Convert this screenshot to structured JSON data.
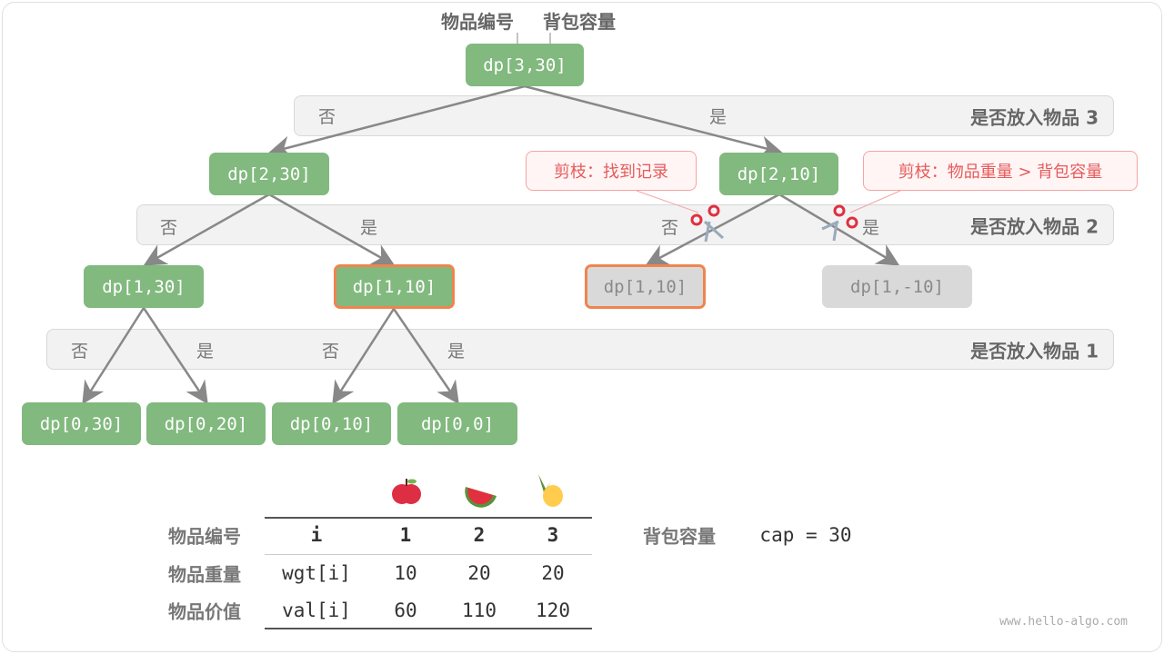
{
  "header": {
    "item_label": "物品编号",
    "capacity_label": "背包容量"
  },
  "bands": [
    {
      "title": "是否放入物品 3",
      "no": "否",
      "yes": "是"
    },
    {
      "title": "是否放入物品 2",
      "no": "否",
      "yes": "是",
      "no2": "否",
      "yes2": "是"
    },
    {
      "title": "是否放入物品 1",
      "no": "否",
      "yes": "是",
      "no2": "否",
      "yes2": "是"
    }
  ],
  "nodes": {
    "root": "dp[3,30]",
    "l2a": "dp[2,30]",
    "l2b": "dp[2,10]",
    "l1a": "dp[1,30]",
    "l1b": "dp[1,10]",
    "l1c": "dp[1,10]",
    "l1d": "dp[1,-10]",
    "l0a": "dp[0,30]",
    "l0b": "dp[0,20]",
    "l0c": "dp[0,10]",
    "l0d": "dp[0,0]"
  },
  "callouts": {
    "memo": "剪枝：找到记录",
    "overweight": "剪枝：物品重量 > 背包容量"
  },
  "colors": {
    "node": "#81b97e",
    "pruned": "#d9d9d9",
    "highlight": "#f0844f",
    "callout": "#e55b5b"
  },
  "table": {
    "icons": [
      "apple-icon",
      "watermelon-icon",
      "pineapple-icon"
    ],
    "rows": [
      {
        "label": "物品编号",
        "key": "i",
        "values": [
          "1",
          "2",
          "3"
        ]
      },
      {
        "label": "物品重量",
        "key": "wgt[i]",
        "values": [
          "10",
          "20",
          "20"
        ]
      },
      {
        "label": "物品价值",
        "key": "val[i]",
        "values": [
          "60",
          "110",
          "120"
        ]
      }
    ],
    "capacity_label": "背包容量",
    "capacity_value": "cap = 30"
  },
  "watermark": "www.hello-algo.com"
}
